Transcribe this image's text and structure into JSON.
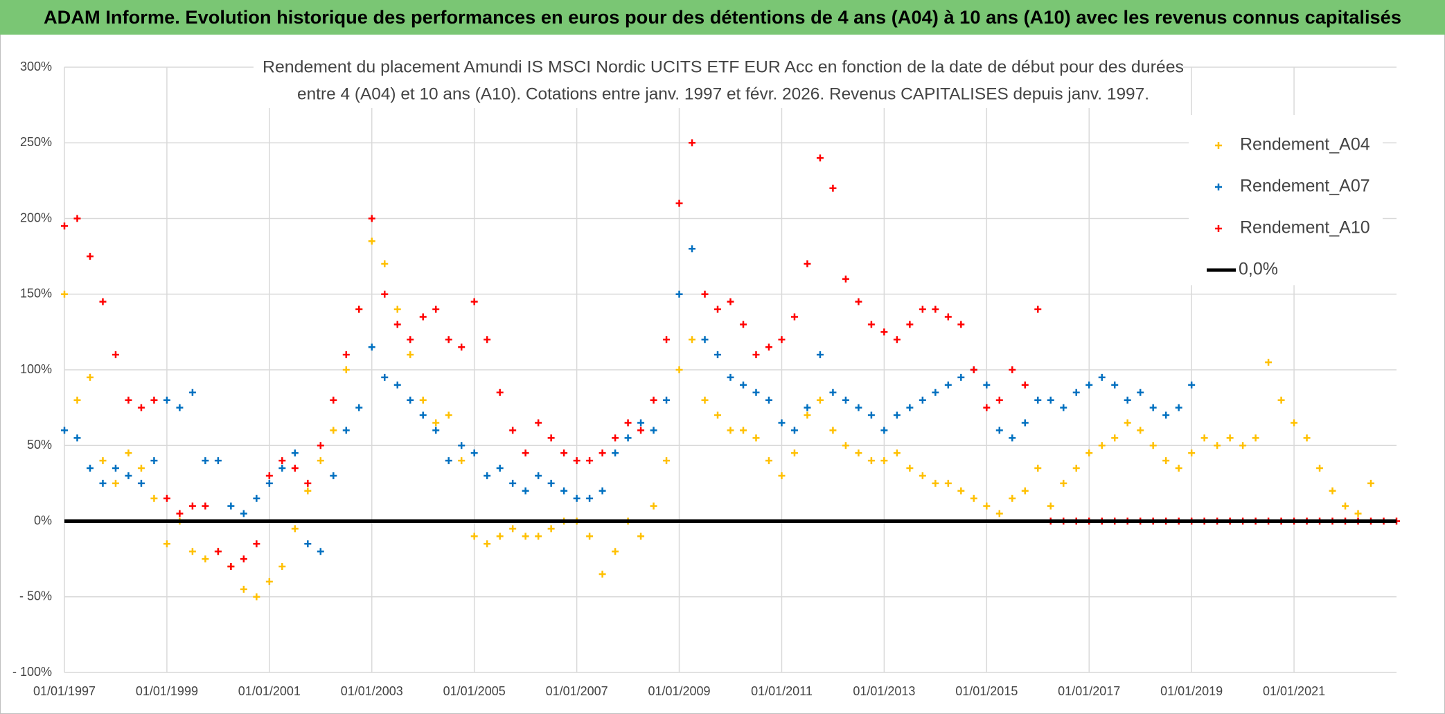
{
  "chart_data": {
    "type": "scatter",
    "header": "ADAM Informe. Evolution historique des performances en euros pour des détentions de 4 ans (A04) à 10 ans (A10) avec les revenus connus capitalisés",
    "title": [
      "Rendement du placement Amundi IS MSCI Nordic UCITS ETF EUR Acc en fonction de la date de début pour des durées",
      "entre 4 (A04) et 10 ans (A10). Cotations entre janv. 1997 et févr. 2026. Revenus CAPITALISES depuis janv. 1997."
    ],
    "xlim": [
      1997,
      2023
    ],
    "xticks": [
      {
        "value": 1997,
        "label": "01/01/1997"
      },
      {
        "value": 1999,
        "label": "01/01/1999"
      },
      {
        "value": 2001,
        "label": "01/01/2001"
      },
      {
        "value": 2003,
        "label": "01/01/2003"
      },
      {
        "value": 2005,
        "label": "01/01/2005"
      },
      {
        "value": 2007,
        "label": "01/01/2007"
      },
      {
        "value": 2009,
        "label": "01/01/2009"
      },
      {
        "value": 2011,
        "label": "01/01/2011"
      },
      {
        "value": 2013,
        "label": "01/01/2013"
      },
      {
        "value": 2015,
        "label": "01/01/2015"
      },
      {
        "value": 2017,
        "label": "01/01/2017"
      },
      {
        "value": 2019,
        "label": "01/01/2019"
      },
      {
        "value": 2021,
        "label": "01/01/2021"
      }
    ],
    "ylim": [
      -100,
      300
    ],
    "yticks": [
      {
        "value": -100,
        "label": "- 100%"
      },
      {
        "value": -50,
        "label": "- 50%"
      },
      {
        "value": 0,
        "label": "0%"
      },
      {
        "value": 50,
        "label": "50%"
      },
      {
        "value": 100,
        "label": "100%"
      },
      {
        "value": 150,
        "label": "150%"
      },
      {
        "value": 200,
        "label": "200%"
      },
      {
        "value": 250,
        "label": "250%"
      },
      {
        "value": 300,
        "label": "300%"
      }
    ],
    "grid": true,
    "legend": "right",
    "series": [
      {
        "name": "Rendement_A04",
        "color": "#ffc000",
        "x": [
          1997,
          1997.25,
          1997.5,
          1997.75,
          1998,
          1998.25,
          1998.5,
          1998.75,
          1999,
          1999.25,
          1999.5,
          1999.75,
          2000,
          2000.25,
          2000.5,
          2000.75,
          2001,
          2001.25,
          2001.5,
          2001.75,
          2002,
          2002.25,
          2002.5,
          2002.75,
          2003,
          2003.25,
          2003.5,
          2003.75,
          2004,
          2004.25,
          2004.5,
          2004.75,
          2005,
          2005.25,
          2005.5,
          2005.75,
          2006,
          2006.25,
          2006.5,
          2006.75,
          2007,
          2007.25,
          2007.5,
          2007.75,
          2008,
          2008.25,
          2008.5,
          2008.75,
          2009,
          2009.25,
          2009.5,
          2009.75,
          2010,
          2010.25,
          2010.5,
          2010.75,
          2011,
          2011.25,
          2011.5,
          2011.75,
          2012,
          2012.25,
          2012.5,
          2012.75,
          2013,
          2013.25,
          2013.5,
          2013.75,
          2014,
          2014.25,
          2014.5,
          2014.75,
          2015,
          2015.25,
          2015.5,
          2015.75,
          2016,
          2016.25,
          2016.5,
          2016.75,
          2017,
          2017.25,
          2017.5,
          2017.75,
          2018,
          2018.25,
          2018.5,
          2018.75,
          2019,
          2019.25,
          2019.5,
          2019.75,
          2020,
          2020.25,
          2020.5,
          2020.75,
          2021,
          2021.25,
          2021.5,
          2021.75,
          2022,
          2022.25,
          2022.5
        ],
        "values": [
          150,
          80,
          95,
          40,
          25,
          45,
          35,
          15,
          -15,
          0,
          -20,
          -25,
          -20,
          -30,
          -45,
          -50,
          -40,
          -30,
          -5,
          20,
          40,
          60,
          100,
          140,
          185,
          170,
          140,
          110,
          80,
          65,
          70,
          40,
          -10,
          -15,
          -10,
          -5,
          -10,
          -10,
          -5,
          0,
          0,
          -10,
          -35,
          -20,
          0,
          -10,
          10,
          40,
          100,
          120,
          80,
          70,
          60,
          60,
          55,
          40,
          30,
          45,
          70,
          80,
          60,
          50,
          45,
          40,
          40,
          45,
          35,
          30,
          25,
          25,
          20,
          15,
          10,
          5,
          15,
          20,
          35,
          10,
          25,
          35,
          45,
          50,
          55,
          65,
          60,
          50,
          40,
          35,
          45,
          55,
          50,
          55,
          50,
          55,
          105,
          80,
          65,
          55,
          35,
          20,
          10,
          5,
          25
        ]
      },
      {
        "name": "Rendement_A07",
        "color": "#0070c0",
        "x": [
          1997,
          1997.25,
          1997.5,
          1997.75,
          1998,
          1998.25,
          1998.5,
          1998.75,
          1999,
          1999.25,
          1999.5,
          1999.75,
          2000,
          2000.25,
          2000.5,
          2000.75,
          2001,
          2001.25,
          2001.5,
          2001.75,
          2002,
          2002.25,
          2002.5,
          2002.75,
          2003,
          2003.25,
          2003.5,
          2003.75,
          2004,
          2004.25,
          2004.5,
          2004.75,
          2005,
          2005.25,
          2005.5,
          2005.75,
          2006,
          2006.25,
          2006.5,
          2006.75,
          2007,
          2007.25,
          2007.5,
          2007.75,
          2008,
          2008.25,
          2008.5,
          2008.75,
          2009,
          2009.25,
          2009.5,
          2009.75,
          2010,
          2010.25,
          2010.5,
          2010.75,
          2011,
          2011.25,
          2011.5,
          2011.75,
          2012,
          2012.25,
          2012.5,
          2012.75,
          2013,
          2013.25,
          2013.5,
          2013.75,
          2014,
          2014.25,
          2014.5,
          2014.75,
          2015,
          2015.25,
          2015.5,
          2015.75,
          2016,
          2016.25,
          2016.5,
          2016.75,
          2017,
          2017.25,
          2017.5,
          2017.75,
          2018,
          2018.25,
          2018.5,
          2018.75,
          2019
        ],
        "values": [
          60,
          55,
          35,
          25,
          35,
          30,
          25,
          40,
          80,
          75,
          85,
          40,
          40,
          10,
          5,
          15,
          25,
          35,
          45,
          -15,
          -20,
          30,
          60,
          75,
          115,
          95,
          90,
          80,
          70,
          60,
          40,
          50,
          45,
          30,
          35,
          25,
          20,
          30,
          25,
          20,
          15,
          15,
          20,
          45,
          55,
          65,
          60,
          80,
          150,
          180,
          120,
          110,
          95,
          90,
          85,
          80,
          65,
          60,
          75,
          110,
          85,
          80,
          75,
          70,
          60,
          70,
          75,
          80,
          85,
          90,
          95,
          100,
          90,
          60,
          55,
          65,
          80,
          80,
          75,
          85,
          90,
          95,
          90,
          80,
          85,
          75,
          70,
          75,
          90
        ]
      },
      {
        "name": "Rendement_A10",
        "color": "#ff0000",
        "x": [
          1997,
          1997.25,
          1997.5,
          1997.75,
          1998,
          1998.25,
          1998.5,
          1998.75,
          1999,
          1999.25,
          1999.5,
          1999.75,
          2000,
          2000.25,
          2000.5,
          2000.75,
          2001,
          2001.25,
          2001.5,
          2001.75,
          2002,
          2002.25,
          2002.5,
          2002.75,
          2003,
          2003.25,
          2003.5,
          2003.75,
          2004,
          2004.25,
          2004.5,
          2004.75,
          2005,
          2005.25,
          2005.5,
          2005.75,
          2006,
          2006.25,
          2006.5,
          2006.75,
          2007,
          2007.25,
          2007.5,
          2007.75,
          2008,
          2008.25,
          2008.5,
          2008.75,
          2009,
          2009.25,
          2009.5,
          2009.75,
          2010,
          2010.25,
          2010.5,
          2010.75,
          2011,
          2011.25,
          2011.5,
          2011.75,
          2012,
          2012.25,
          2012.5,
          2012.75,
          2013,
          2013.25,
          2013.5,
          2013.75,
          2014,
          2014.25,
          2014.5,
          2014.75,
          2015,
          2015.25,
          2015.5,
          2015.75,
          2016,
          2016.25,
          2016.5,
          2016.75,
          2017,
          2017.25,
          2017.5,
          2017.75,
          2018,
          2018.25,
          2018.5,
          2018.75,
          2019,
          2019.25,
          2019.5,
          2019.75,
          2020,
          2020.25,
          2020.5,
          2020.75,
          2021,
          2021.25,
          2021.5,
          2021.75,
          2022,
          2022.25,
          2022.5,
          2022.75,
          2023
        ],
        "values": [
          195,
          200,
          175,
          145,
          110,
          80,
          75,
          80,
          15,
          5,
          10,
          10,
          -20,
          -30,
          -25,
          -15,
          30,
          40,
          35,
          25,
          50,
          80,
          110,
          140,
          200,
          150,
          130,
          120,
          135,
          140,
          120,
          115,
          145,
          120,
          85,
          60,
          45,
          65,
          55,
          45,
          40,
          40,
          45,
          55,
          65,
          60,
          80,
          120,
          210,
          250,
          150,
          140,
          145,
          130,
          110,
          115,
          120,
          135,
          170,
          240,
          220,
          160,
          145,
          130,
          125,
          120,
          130,
          140,
          140,
          135,
          130,
          100,
          75,
          80,
          100,
          90,
          140,
          0,
          0,
          0,
          0,
          0,
          0,
          0,
          0,
          0,
          0,
          0,
          0,
          0,
          0,
          0,
          0,
          0,
          0,
          0,
          0,
          0,
          0,
          0,
          0,
          0,
          0,
          0,
          0
        ]
      },
      {
        "name": "0,0%",
        "color": "#000000",
        "type": "line",
        "x": [
          1997,
          2023
        ],
        "values": [
          0,
          0
        ]
      }
    ]
  }
}
